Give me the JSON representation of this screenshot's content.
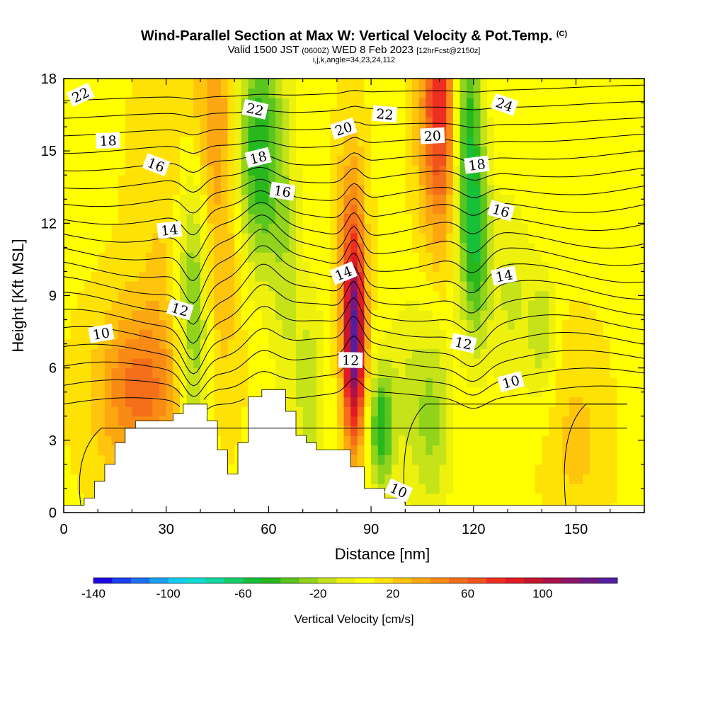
{
  "title": {
    "main": "Wind-Parallel Section at Max W: Vertical Velocity & Pot.Temp.",
    "copyright": "(C)",
    "valid_prefix": "Valid 1500 JST",
    "valid_utc": "(0600Z)",
    "valid_date": "WED 8 Feb 2023",
    "forecast": "[12hrFcst@2150z]",
    "indices": "i,j,k,angle=34,23,24,112"
  },
  "chart_data": {
    "type": "heatmap",
    "xlabel": "Distance [nm]",
    "ylabel": "Height [Kft MSL]",
    "xlim": [
      0,
      170
    ],
    "ylim": [
      0,
      18
    ],
    "xticks": [
      0,
      30,
      60,
      90,
      120,
      150
    ],
    "yticks": [
      0,
      3,
      6,
      9,
      12,
      15,
      18
    ],
    "colorbar": {
      "label": "Vertical Velocity [cm/s]",
      "range": [
        -140,
        140
      ],
      "step": 10,
      "tick_values": [
        -140,
        -100,
        -60,
        -20,
        20,
        60,
        100
      ],
      "tick_labels": [
        "-140",
        "-100",
        "-60",
        "-20",
        "20",
        "60",
        "100"
      ],
      "colors": [
        "#1f08e6",
        "#1b40f0",
        "#1c6fef",
        "#1aa0f0",
        "#13cdf2",
        "#0fdcd3",
        "#11d8a0",
        "#15cf6a",
        "#18c03a",
        "#28b81e",
        "#5ac51e",
        "#92d31c",
        "#c6e31a",
        "#eef10e",
        "#ffff00",
        "#ffe205",
        "#ffc50c",
        "#fca711",
        "#f98b15",
        "#f56e1a",
        "#f2531e",
        "#ef2e22",
        "#e21a24",
        "#c6162e",
        "#ab124a",
        "#8e1466",
        "#6f1a84",
        "#531f9e"
      ]
    },
    "vertical_velocity_features": [
      {
        "x": 38,
        "y": 9,
        "value": -40
      },
      {
        "x": 58,
        "y": 14.5,
        "value": -50
      },
      {
        "x": 94,
        "y": 3.5,
        "value": -50
      },
      {
        "x": 120,
        "y": 13,
        "value": -60
      },
      {
        "x": 85,
        "y": 6.5,
        "value": 130
      },
      {
        "x": 110,
        "y": 17,
        "value": 60
      },
      {
        "x": 24,
        "y": 5,
        "value": 50
      }
    ],
    "theta_contour_labels": [
      {
        "label": "22",
        "x": 5,
        "y": 17.3
      },
      {
        "label": "18",
        "x": 13,
        "y": 15.4
      },
      {
        "label": "16",
        "x": 27,
        "y": 14.4
      },
      {
        "label": "14",
        "x": 31,
        "y": 11.7
      },
      {
        "label": "12",
        "x": 34,
        "y": 8.4
      },
      {
        "label": "10",
        "x": 11,
        "y": 7.4
      },
      {
        "label": "22",
        "x": 56,
        "y": 16.7
      },
      {
        "label": "18",
        "x": 57,
        "y": 14.7
      },
      {
        "label": "16",
        "x": 64,
        "y": 13.3
      },
      {
        "label": "20",
        "x": 82,
        "y": 15.9
      },
      {
        "label": "22",
        "x": 94,
        "y": 16.5
      },
      {
        "label": "14",
        "x": 82,
        "y": 9.9
      },
      {
        "label": "12",
        "x": 84,
        "y": 6.3
      },
      {
        "label": "10",
        "x": 98,
        "y": 0.9
      },
      {
        "label": "20",
        "x": 108,
        "y": 15.6
      },
      {
        "label": "24",
        "x": 129,
        "y": 16.9
      },
      {
        "label": "18",
        "x": 121,
        "y": 14.4
      },
      {
        "label": "16",
        "x": 128,
        "y": 12.5
      },
      {
        "label": "14",
        "x": 129,
        "y": 9.8
      },
      {
        "label": "12",
        "x": 117,
        "y": 7
      },
      {
        "label": "10",
        "x": 131,
        "y": 5.4
      }
    ],
    "terrain_profile": [
      [
        0,
        0.3
      ],
      [
        6,
        0.3
      ],
      [
        6,
        0.6
      ],
      [
        9,
        0.6
      ],
      [
        9,
        1.3
      ],
      [
        12,
        1.3
      ],
      [
        12,
        2
      ],
      [
        15,
        2
      ],
      [
        15,
        2.9
      ],
      [
        18,
        2.9
      ],
      [
        18,
        3.5
      ],
      [
        21,
        3.5
      ],
      [
        21,
        3.8
      ],
      [
        32,
        3.8
      ],
      [
        32,
        4.1
      ],
      [
        35,
        4.1
      ],
      [
        35,
        4.5
      ],
      [
        42,
        4.5
      ],
      [
        42,
        3.8
      ],
      [
        45,
        3.8
      ],
      [
        45,
        2.6
      ],
      [
        48,
        2.6
      ],
      [
        48,
        1.6
      ],
      [
        51,
        1.6
      ],
      [
        51,
        2.9
      ],
      [
        54,
        2.9
      ],
      [
        54,
        4.8
      ],
      [
        58,
        4.8
      ],
      [
        58,
        5.1
      ],
      [
        65,
        5.1
      ],
      [
        65,
        4.2
      ],
      [
        68,
        4.2
      ],
      [
        68,
        3.2
      ],
      [
        71,
        3.2
      ],
      [
        71,
        2.9
      ],
      [
        74,
        2.9
      ],
      [
        74,
        2.6
      ],
      [
        84,
        2.6
      ],
      [
        84,
        1.9
      ],
      [
        88,
        1.9
      ],
      [
        88,
        1
      ],
      [
        94,
        1
      ],
      [
        94,
        0.6
      ],
      [
        100,
        0.6
      ],
      [
        100,
        0.3
      ],
      [
        170,
        0.3
      ]
    ]
  }
}
